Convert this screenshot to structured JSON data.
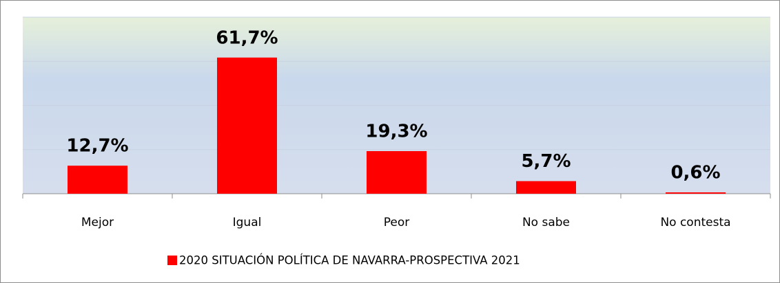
{
  "chart_data": {
    "type": "bar",
    "categories": [
      "Mejor",
      "Igual",
      "Peor",
      "No sabe",
      "No contesta"
    ],
    "series": [
      {
        "name": "2020 SITUACIÓN POLÍTICA DE NAVARRA-PROSPECTIVA 2021",
        "color": "#ff0000",
        "values": [
          12.7,
          61.7,
          19.3,
          5.7,
          0.6
        ],
        "value_labels": [
          "12,7%",
          "61,7%",
          "19,3%",
          "5,7%",
          "0,6%"
        ]
      }
    ],
    "ylim": [
      0,
      80
    ],
    "yticks": [
      0,
      20,
      40,
      60,
      80
    ],
    "grid": true,
    "legend": "bottom"
  }
}
